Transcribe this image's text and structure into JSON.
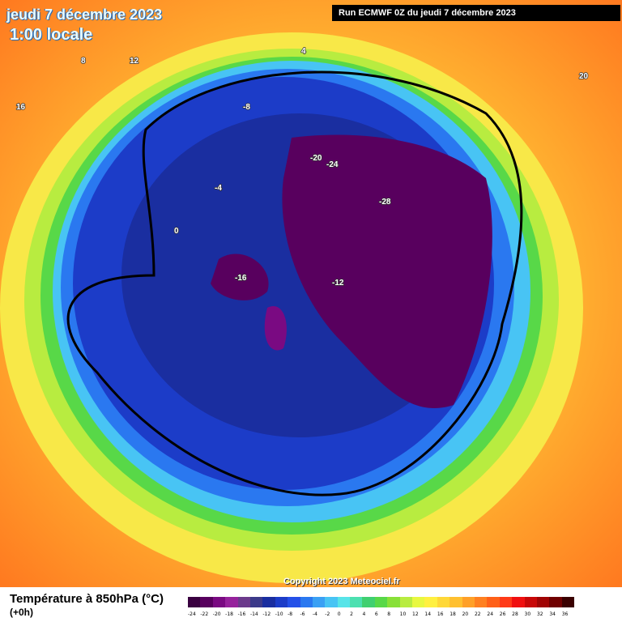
{
  "header": {
    "date_title": "jeudi 7 décembre 2023",
    "time_title": "1:00 locale",
    "run_info": "Run ECMWF 0Z du jeudi 7 décembre 2023"
  },
  "footer": {
    "variable_label": "Température à 850hPa (°C)",
    "offset_label": "(+0h)",
    "copyright": "Copyright 2023 Meteociel.fr"
  },
  "legend": {
    "ticks": [
      "-24",
      "-22",
      "-20",
      "-18",
      "-16",
      "-14",
      "-12",
      "-10",
      "-8",
      "-6",
      "-4",
      "-2",
      "0",
      "2",
      "4",
      "6",
      "8",
      "10",
      "12",
      "14",
      "16",
      "18",
      "20",
      "22",
      "24",
      "26",
      "28",
      "30",
      "32",
      "34",
      "36"
    ],
    "colors": [
      "#3a0040",
      "#58005e",
      "#7a0a82",
      "#96229c",
      "#6c3a8c",
      "#3c3a8a",
      "#1a2ea0",
      "#1c3cc8",
      "#2450e8",
      "#2a78f0",
      "#3aa0f4",
      "#48c4f4",
      "#58e4e8",
      "#4ce0b0",
      "#40d070",
      "#58d848",
      "#88e038",
      "#b8ec40",
      "#e8f840",
      "#fff040",
      "#ffd838",
      "#ffc030",
      "#ffa028",
      "#ff8020",
      "#ff6018",
      "#ff3a18",
      "#f01010",
      "#c80808",
      "#a00404",
      "#700000",
      "#3a0000"
    ]
  },
  "map_labels": [
    {
      "text": "16",
      "name": "label-16"
    },
    {
      "text": "8",
      "name": "label-8"
    },
    {
      "text": "12",
      "name": "label-12"
    },
    {
      "text": "4",
      "name": "label-4"
    },
    {
      "text": "0",
      "name": "label-0"
    },
    {
      "text": "-4",
      "name": "label-minus4"
    },
    {
      "text": "-8",
      "name": "label-minus8"
    },
    {
      "text": "-12",
      "name": "label-minus12"
    },
    {
      "text": "-16",
      "name": "label-minus16"
    },
    {
      "text": "-20",
      "name": "label-minus20"
    },
    {
      "text": "-24",
      "name": "label-minus24"
    },
    {
      "text": "-28",
      "name": "label-minus28"
    },
    {
      "text": "20",
      "name": "label-20"
    }
  ]
}
